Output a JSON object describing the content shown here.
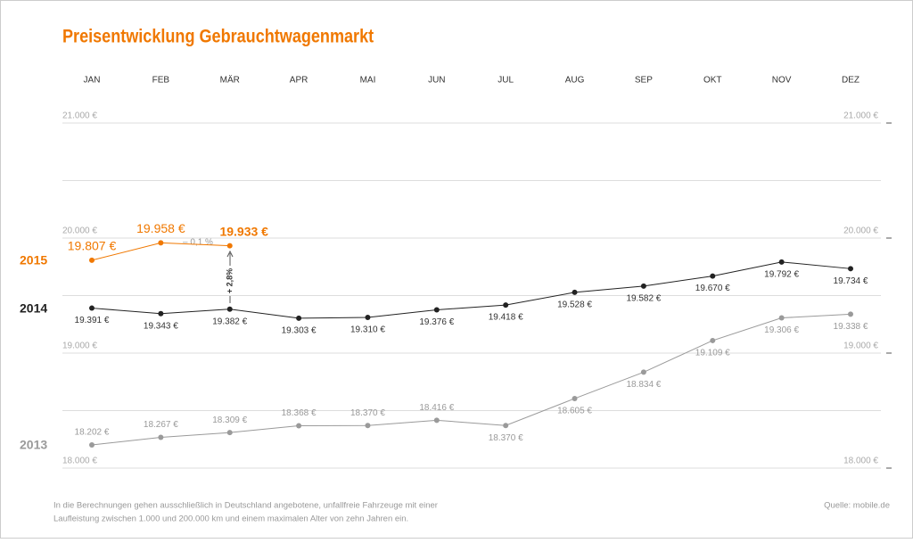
{
  "chart_data": {
    "type": "line",
    "title": "Preisentwicklung Gebrauchtwagenmarkt",
    "categories": [
      "JAN",
      "FEB",
      "MÄR",
      "APR",
      "MAI",
      "JUN",
      "JUL",
      "AUG",
      "SEP",
      "OKT",
      "NOV",
      "DEZ"
    ],
    "series": [
      {
        "name": "2015",
        "color": "#f07800",
        "values": [
          19807,
          19958,
          19933,
          null,
          null,
          null,
          null,
          null,
          null,
          null,
          null,
          null
        ],
        "value_labels": [
          "19.807 €",
          "19.958 €",
          "19.933 €",
          null,
          null,
          null,
          null,
          null,
          null,
          null,
          null,
          null
        ]
      },
      {
        "name": "2014",
        "color": "#222222",
        "values": [
          19391,
          19343,
          19382,
          19303,
          19310,
          19376,
          19418,
          19528,
          19582,
          19670,
          19792,
          19734
        ],
        "value_labels": [
          "19.391 €",
          "19.343 €",
          "19.382 €",
          "19.303 €",
          "19.310 €",
          "19.376 €",
          "19.418 €",
          "19.528 €",
          "19.582 €",
          "19.670 €",
          "19.792 €",
          "19.734 €"
        ]
      },
      {
        "name": "2013",
        "color": "#9a9a9a",
        "values": [
          18202,
          18267,
          18309,
          18368,
          18370,
          18416,
          18370,
          18605,
          18834,
          19109,
          19306,
          19338
        ],
        "value_labels": [
          "18.202 €",
          "18.267 €",
          "18.309 €",
          "18.368 €",
          "18.370 €",
          "18.416 €",
          "18.370 €",
          "18.605 €",
          "18.834 €",
          "19.109 €",
          "19.306 €",
          "19.338 €"
        ]
      }
    ],
    "ylim": [
      18000,
      21000
    ],
    "yticks": [
      {
        "value": 18000,
        "label": "18.000 €"
      },
      {
        "value": 19000,
        "label": "19.000 €"
      },
      {
        "value": 20000,
        "label": "20.000 €"
      },
      {
        "value": 21000,
        "label": "21.000 €"
      }
    ],
    "ygrid_minor": [
      18500,
      19500,
      20500
    ],
    "grid": true,
    "annotations": [
      "– 0,1 %",
      "+ 2,8%"
    ],
    "footnote": [
      "In die Berechnungen gehen ausschließlich in Deutschland angebotene, unfallfreie Fahrzeuge mit einer",
      "Laufleistung zwischen 1.000 und 200.000 km und einem maximalen Alter von zehn Jahren ein."
    ],
    "source": "Quelle: mobile.de"
  }
}
